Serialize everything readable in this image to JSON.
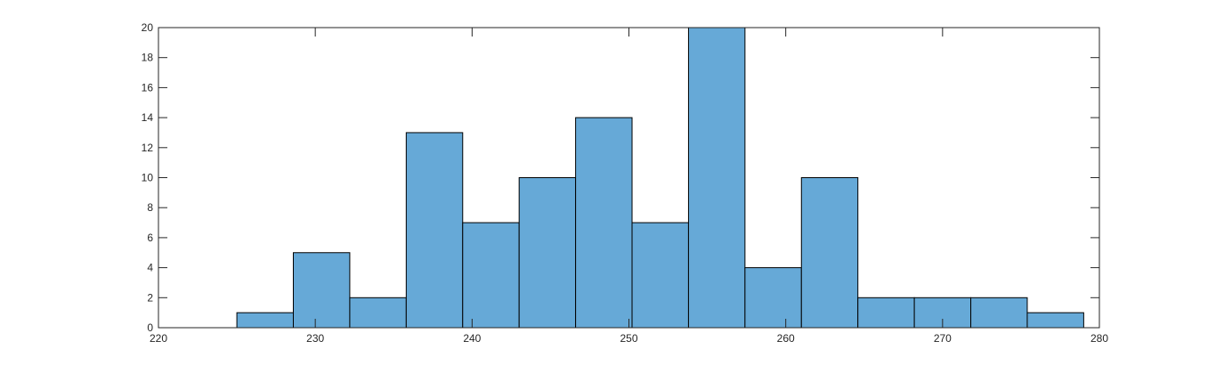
{
  "chart_data": {
    "type": "bar",
    "title": "",
    "xlabel": "",
    "ylabel": "",
    "xlim": [
      220,
      280
    ],
    "ylim": [
      0,
      20
    ],
    "x_ticks": [
      220,
      230,
      240,
      250,
      260,
      270,
      280
    ],
    "y_ticks": [
      0,
      2,
      4,
      6,
      8,
      10,
      12,
      14,
      16,
      18,
      20
    ],
    "x_tick_labels": [
      "220",
      "230",
      "240",
      "250",
      "260",
      "270",
      "280"
    ],
    "y_tick_labels": [
      "0",
      "2",
      "4",
      "6",
      "8",
      "10",
      "12",
      "14",
      "16",
      "18",
      "20"
    ],
    "grid": false,
    "bins": [
      {
        "x_start": 225.0,
        "x_end": 228.6,
        "count": 1
      },
      {
        "x_start": 228.6,
        "x_end": 232.2,
        "count": 5
      },
      {
        "x_start": 232.2,
        "x_end": 235.8,
        "count": 2
      },
      {
        "x_start": 235.8,
        "x_end": 239.4,
        "count": 13
      },
      {
        "x_start": 239.4,
        "x_end": 243.0,
        "count": 7
      },
      {
        "x_start": 243.0,
        "x_end": 246.6,
        "count": 10
      },
      {
        "x_start": 246.6,
        "x_end": 250.2,
        "count": 14
      },
      {
        "x_start": 250.2,
        "x_end": 253.8,
        "count": 7
      },
      {
        "x_start": 253.8,
        "x_end": 257.4,
        "count": 20
      },
      {
        "x_start": 257.4,
        "x_end": 261.0,
        "count": 4
      },
      {
        "x_start": 261.0,
        "x_end": 264.6,
        "count": 10
      },
      {
        "x_start": 264.6,
        "x_end": 268.2,
        "count": 2
      },
      {
        "x_start": 268.2,
        "x_end": 271.8,
        "count": 2
      },
      {
        "x_start": 271.8,
        "x_end": 275.4,
        "count": 2
      },
      {
        "x_start": 275.4,
        "x_end": 279.0,
        "count": 1
      }
    ],
    "bar_color": "#66a9d7",
    "edge_color": "#000000",
    "axis_color": "#262626"
  }
}
